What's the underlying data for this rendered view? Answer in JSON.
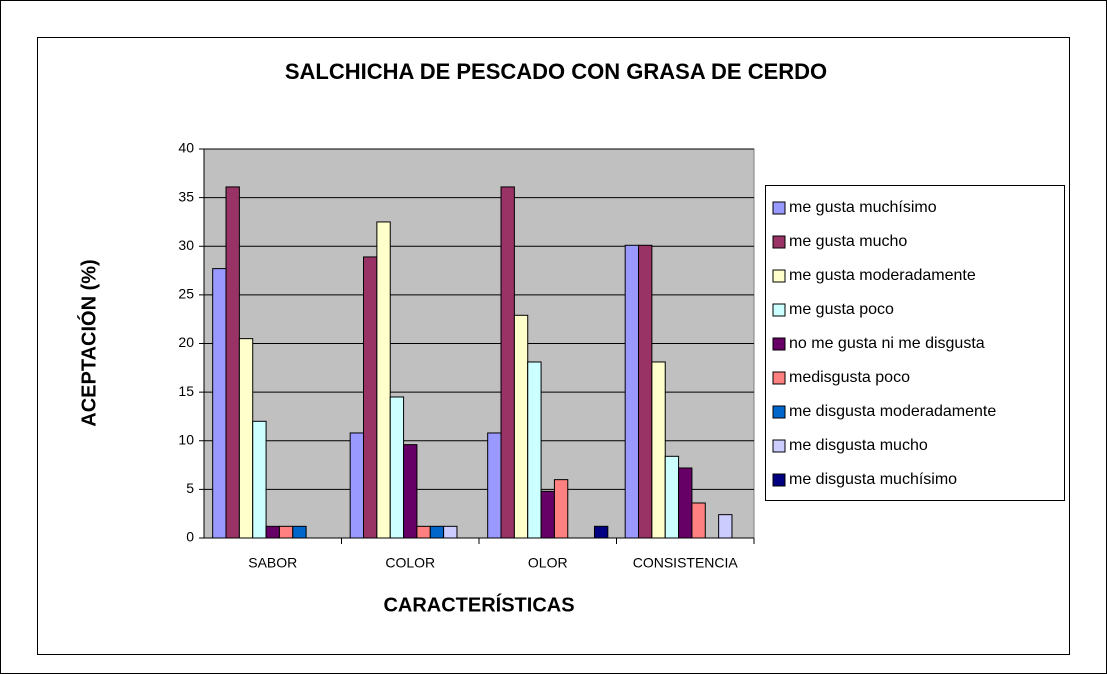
{
  "chart_data": {
    "type": "bar",
    "title": "SALCHICHA DE PESCADO CON GRASA DE CERDO",
    "xlabel": "CARACTERÍSTICAS",
    "ylabel": "ACEPTACIÓN (%)",
    "categories": [
      "SABOR",
      "COLOR",
      "OLOR",
      "CONSISTENCIA"
    ],
    "series": [
      {
        "name": "me gusta muchísimo",
        "color": "#9999ff",
        "values": [
          27.7,
          10.8,
          10.8,
          30.1
        ]
      },
      {
        "name": "me gusta mucho",
        "color": "#993366",
        "values": [
          36.1,
          28.9,
          36.1,
          30.1
        ]
      },
      {
        "name": "me gusta moderadamente",
        "color": "#ffffcc",
        "values": [
          20.5,
          32.5,
          22.9,
          18.1
        ]
      },
      {
        "name": "me gusta poco",
        "color": "#ccffff",
        "values": [
          12.0,
          14.5,
          18.1,
          8.4
        ]
      },
      {
        "name": "no me gusta ni me disgusta",
        "color": "#660066",
        "values": [
          1.2,
          9.6,
          4.8,
          7.2
        ]
      },
      {
        "name": "medisgusta poco",
        "color": "#ff8080",
        "values": [
          1.2,
          1.2,
          6.0,
          3.6
        ]
      },
      {
        "name": "me disgusta moderadamente",
        "color": "#0066cc",
        "values": [
          1.2,
          1.2,
          0,
          0
        ]
      },
      {
        "name": "me disgusta mucho",
        "color": "#ccccff",
        "values": [
          0,
          1.2,
          0,
          2.4
        ]
      },
      {
        "name": "me disgusta muchísimo",
        "color": "#000080",
        "values": [
          0,
          0,
          1.2,
          0
        ]
      }
    ],
    "ylim": [
      0,
      40
    ],
    "yticks": [
      0,
      5,
      10,
      15,
      20,
      25,
      30,
      35,
      40
    ],
    "grid": true,
    "legend": "right"
  }
}
